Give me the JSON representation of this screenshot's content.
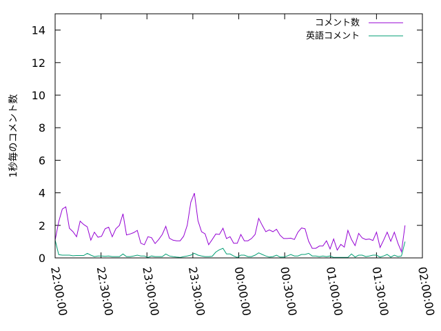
{
  "chart_data": {
    "type": "line",
    "title": "",
    "xlabel": "",
    "ylabel": "1秒毎のコメント数",
    "ylim": [
      0,
      15
    ],
    "xlim": [
      "22:00:00",
      "02:00:00"
    ],
    "yticks": [
      "0",
      "2",
      "4",
      "6",
      "8",
      "10",
      "12",
      "14"
    ],
    "xticks": [
      "22:00:00",
      "22:30:00",
      "23:00:00",
      "23:30:00",
      "00:00:00",
      "00:30:00",
      "01:00:00",
      "01:30:00",
      "02:00:00"
    ],
    "grid": false,
    "legend_position": "top-right",
    "x": [
      "22:00:00",
      "22:02:20",
      "22:04:40",
      "22:07:00",
      "22:09:20",
      "22:11:40",
      "22:14:00",
      "22:16:20",
      "22:18:40",
      "22:21:00",
      "22:23:20",
      "22:25:40",
      "22:28:00",
      "22:30:20",
      "22:32:40",
      "22:35:00",
      "22:37:20",
      "22:39:40",
      "22:42:00",
      "22:44:20",
      "22:46:40",
      "22:49:00",
      "22:51:20",
      "22:53:40",
      "22:56:00",
      "22:58:20",
      "23:00:40",
      "23:03:00",
      "23:05:20",
      "23:07:40",
      "23:10:00",
      "23:12:20",
      "23:14:40",
      "23:17:00",
      "23:19:20",
      "23:21:40",
      "23:24:00",
      "23:26:20",
      "23:28:40",
      "23:31:00",
      "23:33:20",
      "23:35:40",
      "23:38:00",
      "23:40:20",
      "23:42:40",
      "23:45:00",
      "23:47:20",
      "23:49:40",
      "23:52:00",
      "23:54:20",
      "23:56:40",
      "23:59:00",
      "00:01:20",
      "00:03:40",
      "00:06:00",
      "00:08:20",
      "00:10:40",
      "00:13:00",
      "00:15:20",
      "00:17:40",
      "00:20:00",
      "00:22:20",
      "00:24:40",
      "00:27:00",
      "00:29:20",
      "00:31:40",
      "00:34:00",
      "00:36:20",
      "00:38:40",
      "00:41:00",
      "00:43:20",
      "00:45:40",
      "00:48:00",
      "00:50:20",
      "00:52:40",
      "00:55:00",
      "00:57:20",
      "00:59:40",
      "01:02:00",
      "01:04:20",
      "01:06:40",
      "01:09:00",
      "01:11:20",
      "01:13:40",
      "01:16:00",
      "01:18:20",
      "01:20:40",
      "01:23:00",
      "01:25:20",
      "01:27:40",
      "01:30:00",
      "01:32:20",
      "01:34:40",
      "01:37:00",
      "01:39:20",
      "01:41:40",
      "01:44:00",
      "01:46:20",
      "01:48:40"
    ],
    "series": [
      {
        "name": "コメント数",
        "color": "#9400d3",
        "values": [
          1.09,
          2.22,
          3.0,
          3.14,
          1.82,
          1.61,
          1.3,
          2.26,
          2.05,
          1.91,
          1.09,
          1.58,
          1.27,
          1.33,
          1.79,
          1.89,
          1.3,
          1.79,
          2.0,
          2.71,
          1.41,
          1.47,
          1.55,
          1.69,
          0.9,
          0.81,
          1.3,
          1.24,
          0.88,
          1.13,
          1.44,
          1.94,
          1.21,
          1.09,
          1.05,
          1.05,
          1.33,
          2.0,
          3.42,
          3.98,
          2.29,
          1.61,
          1.48,
          0.81,
          1.13,
          1.47,
          1.44,
          1.82,
          1.19,
          1.3,
          0.9,
          0.9,
          1.44,
          1.05,
          1.05,
          1.19,
          1.44,
          2.43,
          2.0,
          1.61,
          1.72,
          1.61,
          1.76,
          1.39,
          1.19,
          1.19,
          1.21,
          1.13,
          1.58,
          1.84,
          1.79,
          1.02,
          0.59,
          0.59,
          0.73,
          0.73,
          1.05,
          0.55,
          1.16,
          0.48,
          0.83,
          0.66,
          1.69,
          1.13,
          0.76,
          1.51,
          1.23,
          1.13,
          1.16,
          1.07,
          1.58,
          0.64,
          1.09,
          1.58,
          1.02,
          1.58,
          0.9,
          0.38,
          2.0
        ]
      },
      {
        "name": "英語コメント",
        "color": "#009e73",
        "values": [
          1.1,
          0.2,
          0.17,
          0.17,
          0.17,
          0.13,
          0.15,
          0.15,
          0.15,
          0.28,
          0.17,
          0.08,
          0.12,
          0.12,
          0.1,
          0.12,
          0.08,
          0.08,
          0.08,
          0.24,
          0.08,
          0.08,
          0.12,
          0.17,
          0.12,
          0.12,
          0.03,
          0.12,
          0.08,
          0.08,
          0.08,
          0.24,
          0.12,
          0.08,
          0.05,
          0.03,
          0.08,
          0.12,
          0.17,
          0.28,
          0.17,
          0.12,
          0.08,
          0.08,
          0.1,
          0.36,
          0.5,
          0.59,
          0.24,
          0.24,
          0.12,
          0.03,
          0.17,
          0.17,
          0.08,
          0.08,
          0.17,
          0.31,
          0.21,
          0.12,
          0.05,
          0.08,
          0.17,
          0.05,
          0.05,
          0.12,
          0.21,
          0.12,
          0.12,
          0.21,
          0.21,
          0.28,
          0.12,
          0.12,
          0.08,
          0.12,
          0.08,
          0.12,
          0.03,
          0.03,
          0.03,
          0.03,
          0.03,
          0.24,
          0.05,
          0.17,
          0.17,
          0.08,
          0.12,
          0.17,
          0.17,
          0.05,
          0.12,
          0.21,
          0.05,
          0.17,
          0.08,
          0.12,
          1.0
        ]
      }
    ]
  }
}
